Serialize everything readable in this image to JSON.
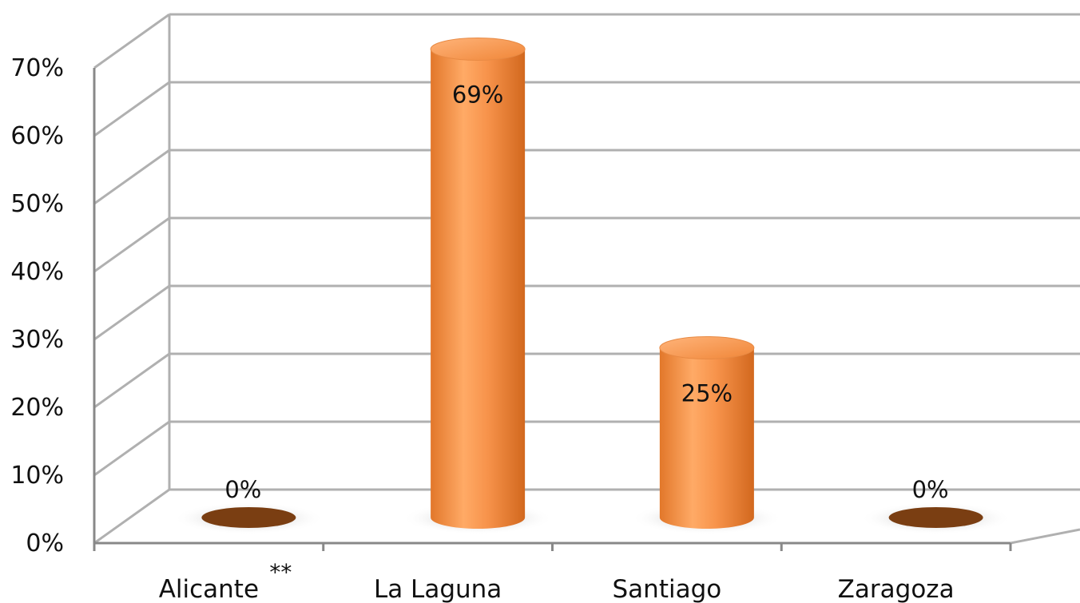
{
  "chart_data": {
    "type": "bar",
    "style": "3d-cylinder",
    "categories": [
      "Alicante",
      "La Laguna",
      "Santiago",
      "Zaragoza"
    ],
    "category_markers": [
      "**",
      "",
      "",
      ""
    ],
    "values": [
      0,
      69,
      25,
      0
    ],
    "data_labels": [
      "0%",
      "69%",
      "25%",
      "0%"
    ],
    "yticks": [
      "0%",
      "10%",
      "20%",
      "30%",
      "40%",
      "50%",
      "60%",
      "70%"
    ],
    "ylim": [
      0,
      70
    ],
    "grid": true,
    "legend": "none",
    "colors": {
      "bar": "#f7934b",
      "bar_light": "#ffb57a",
      "bar_dark": "#d86f22",
      "zero_disc": "#7a3e12",
      "grid": "#b0b0b0",
      "axis": "#888888"
    }
  }
}
